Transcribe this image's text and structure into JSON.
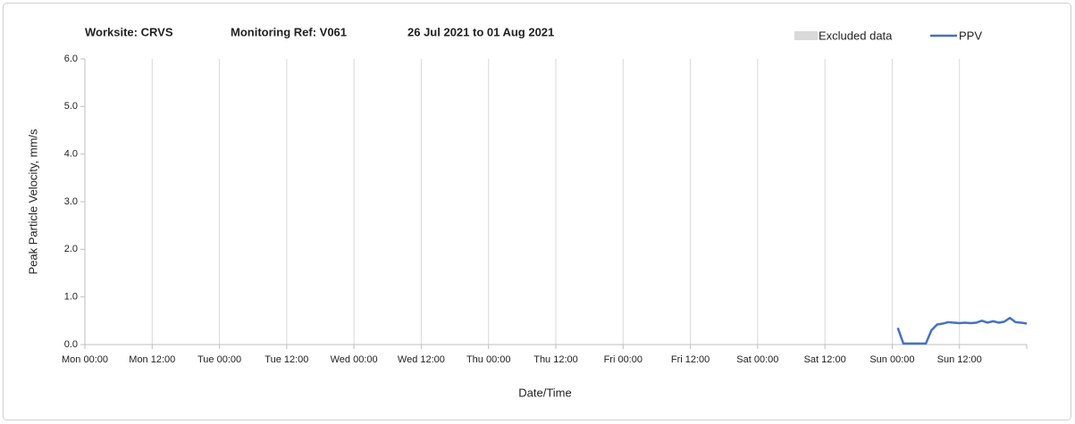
{
  "chart_data": {
    "type": "line",
    "title_parts": [
      "Worksite: CRVS",
      "Monitoring Ref: V061",
      "26 Jul 2021 to 01 Aug 2021"
    ],
    "xlabel": "Date/Time",
    "ylabel": "Peak Particle Velocity, mm/s",
    "xlim": [
      0,
      168
    ],
    "xticks": [
      {
        "value": 0,
        "label": "Mon 00:00"
      },
      {
        "value": 12,
        "label": "Mon 12:00"
      },
      {
        "value": 24,
        "label": "Tue 00:00"
      },
      {
        "value": 36,
        "label": "Tue 12:00"
      },
      {
        "value": 48,
        "label": "Wed 00:00"
      },
      {
        "value": 60,
        "label": "Wed 12:00"
      },
      {
        "value": 72,
        "label": "Thu 00:00"
      },
      {
        "value": 84,
        "label": "Thu 12:00"
      },
      {
        "value": 96,
        "label": "Fri 00:00"
      },
      {
        "value": 108,
        "label": "Fri 12:00"
      },
      {
        "value": 120,
        "label": "Sat 00:00"
      },
      {
        "value": 132,
        "label": "Sat 12:00"
      },
      {
        "value": 144,
        "label": "Sun 00:00"
      },
      {
        "value": 156,
        "label": "Sun 12:00"
      }
    ],
    "ylim": [
      0,
      6
    ],
    "yticks": [
      {
        "value": 0,
        "label": "0.0"
      },
      {
        "value": 1,
        "label": "1.0"
      },
      {
        "value": 2,
        "label": "2.0"
      },
      {
        "value": 3,
        "label": "3.0"
      },
      {
        "value": 4,
        "label": "4.0"
      },
      {
        "value": 5,
        "label": "5.0"
      },
      {
        "value": 6,
        "label": "6.0"
      }
    ],
    "grid": "x",
    "excluded": {
      "name": "Excluded data",
      "color": "#d9d9d9"
    },
    "series": [
      {
        "name": "PPV",
        "color": "#4472c4",
        "x": [
          145,
          146,
          147,
          148,
          149,
          150,
          151,
          152,
          153,
          154,
          155,
          156,
          157,
          158,
          159,
          160,
          161,
          162,
          163,
          164,
          165,
          166,
          167,
          168
        ],
        "values": [
          0.35,
          0.02,
          0.02,
          0.02,
          0.02,
          0.02,
          0.3,
          0.42,
          0.44,
          0.47,
          0.46,
          0.45,
          0.46,
          0.45,
          0.46,
          0.5,
          0.46,
          0.49,
          0.46,
          0.48,
          0.56,
          0.47,
          0.46,
          0.44
        ]
      }
    ]
  }
}
